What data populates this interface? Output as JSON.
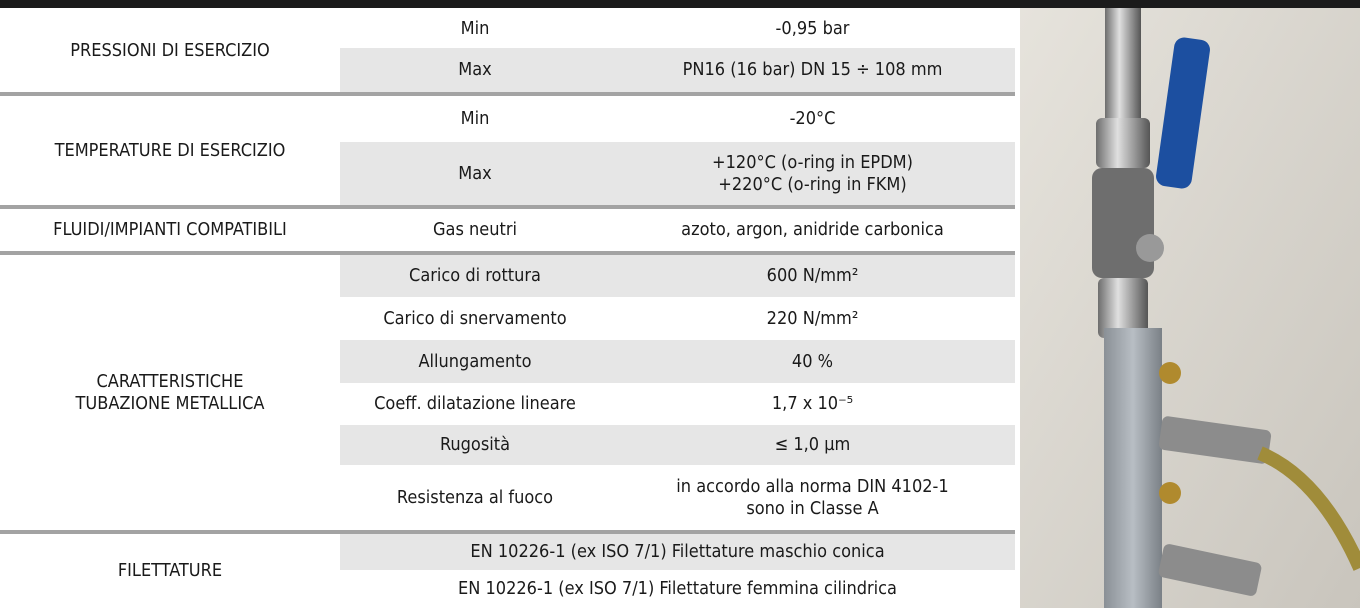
{
  "table": {
    "groups": [
      {
        "label": "PRESSIONI DI ESERCIZIO",
        "rows": [
          {
            "param": "Min",
            "value": "-0,95 bar"
          },
          {
            "param": "Max",
            "value": "PN16 (16 bar) DN 15 ÷ 108 mm"
          }
        ]
      },
      {
        "label": "TEMPERATURE DI ESERCIZIO",
        "rows": [
          {
            "param": "Min",
            "value": "-20°C"
          },
          {
            "param": "Max",
            "value": "+120°C (o-ring in EPDM)\n+220°C (o-ring in FKM)"
          }
        ]
      },
      {
        "label": "FLUIDI/IMPIANTI COMPATIBILI",
        "rows": [
          {
            "param": "Gas neutri",
            "value": "azoto, argon, anidride carbonica"
          }
        ]
      },
      {
        "label": "CARATTERISTICHE\nTUBAZIONE METALLICA",
        "rows": [
          {
            "param": "Carico di rottura",
            "value": "600 N/mm²"
          },
          {
            "param": "Carico di snervamento",
            "value": "220 N/mm²"
          },
          {
            "param": "Allungamento",
            "value": "40 %"
          },
          {
            "param": "Coeff. dilatazione lineare",
            "value": "1,7 x 10⁻⁵"
          },
          {
            "param": "Rugosità",
            "value": "≤ 1,0 µm"
          },
          {
            "param": "Resistenza al fuoco",
            "value": "in accordo alla norma DIN 4102-1\nsono in Classe A"
          }
        ]
      },
      {
        "label": "FILETTATURE",
        "rows": [
          {
            "text": "EN 10226-1 (ex ISO 7/1) Filettature maschio conica"
          },
          {
            "text": "EN 10226-1 (ex ISO 7/1) Filettature femmina cilindrica"
          }
        ]
      }
    ]
  }
}
